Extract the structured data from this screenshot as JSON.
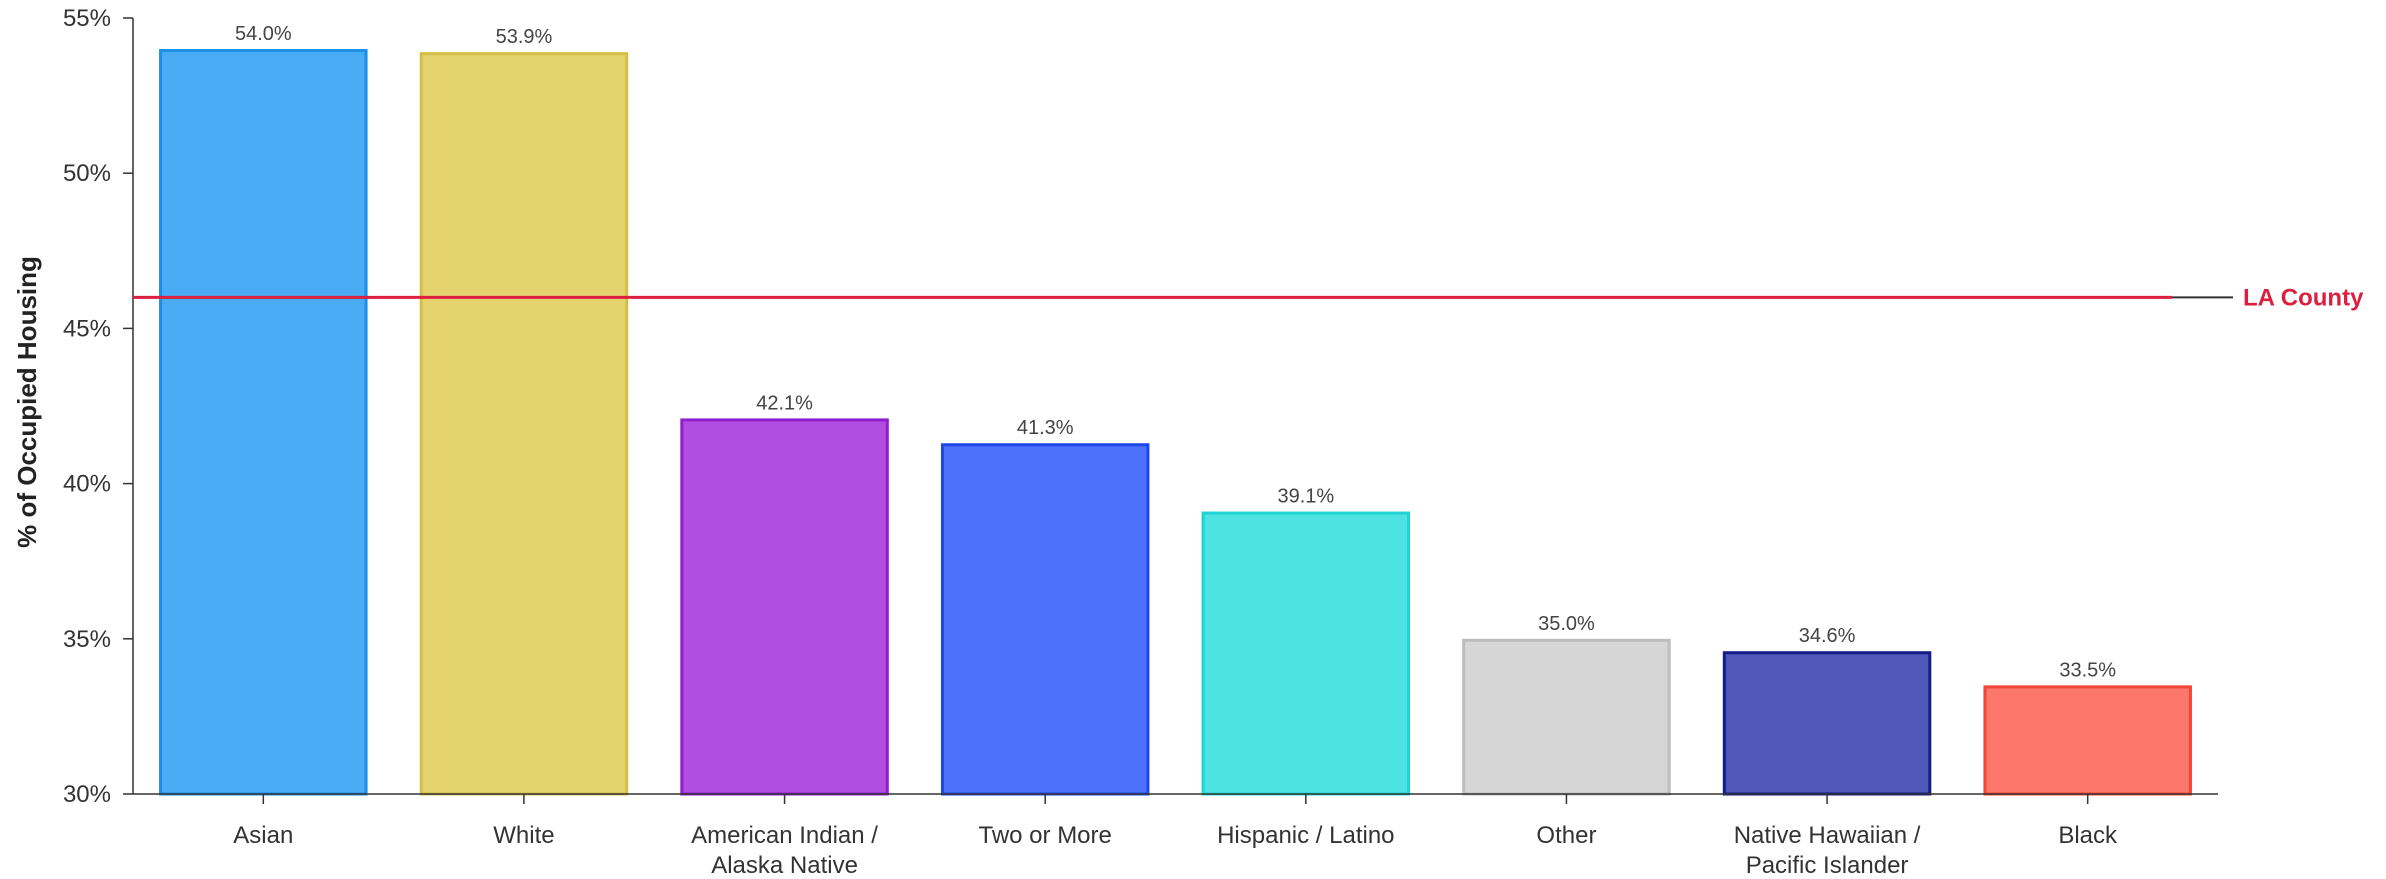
{
  "chart_data": {
    "type": "bar",
    "ylabel": "% of Occupied Housing",
    "xlabel": "",
    "ylim": [
      30,
      55
    ],
    "y_ticks": [
      30,
      35,
      40,
      45,
      50,
      55
    ],
    "y_tick_labels": [
      "30%",
      "35%",
      "40%",
      "45%",
      "50%",
      "55%"
    ],
    "categories": [
      [
        "Asian"
      ],
      [
        "White"
      ],
      [
        "American Indian /",
        "Alaska Native"
      ],
      [
        "Two or More"
      ],
      [
        "Hispanic / Latino"
      ],
      [
        "Other"
      ],
      [
        "Native Hawaiian /",
        "Pacific Islander"
      ],
      [
        "Black"
      ]
    ],
    "values": [
      54.0,
      53.9,
      42.1,
      41.3,
      39.1,
      35.0,
      34.6,
      33.5
    ],
    "value_labels": [
      "54.0%",
      "53.9%",
      "42.1%",
      "41.3%",
      "39.1%",
      "35.0%",
      "34.6%",
      "33.5%"
    ],
    "bar_fills": [
      "#4aabf5",
      "#e3d26e",
      "#b14de0",
      "#4c72fb",
      "#4de3e3",
      "#d6d6d6",
      "#4f57b8",
      "#fd776b"
    ],
    "bar_strokes": [
      "#1a8ee8",
      "#d4bf45",
      "#8e1fd0",
      "#1f46e6",
      "#1fd3d3",
      "#bdbdbd",
      "#141c86",
      "#f24536"
    ],
    "reference_line": {
      "label": "LA County",
      "value": 46.0,
      "color": "#dc1f3f"
    },
    "grid": false,
    "legend": "none"
  }
}
